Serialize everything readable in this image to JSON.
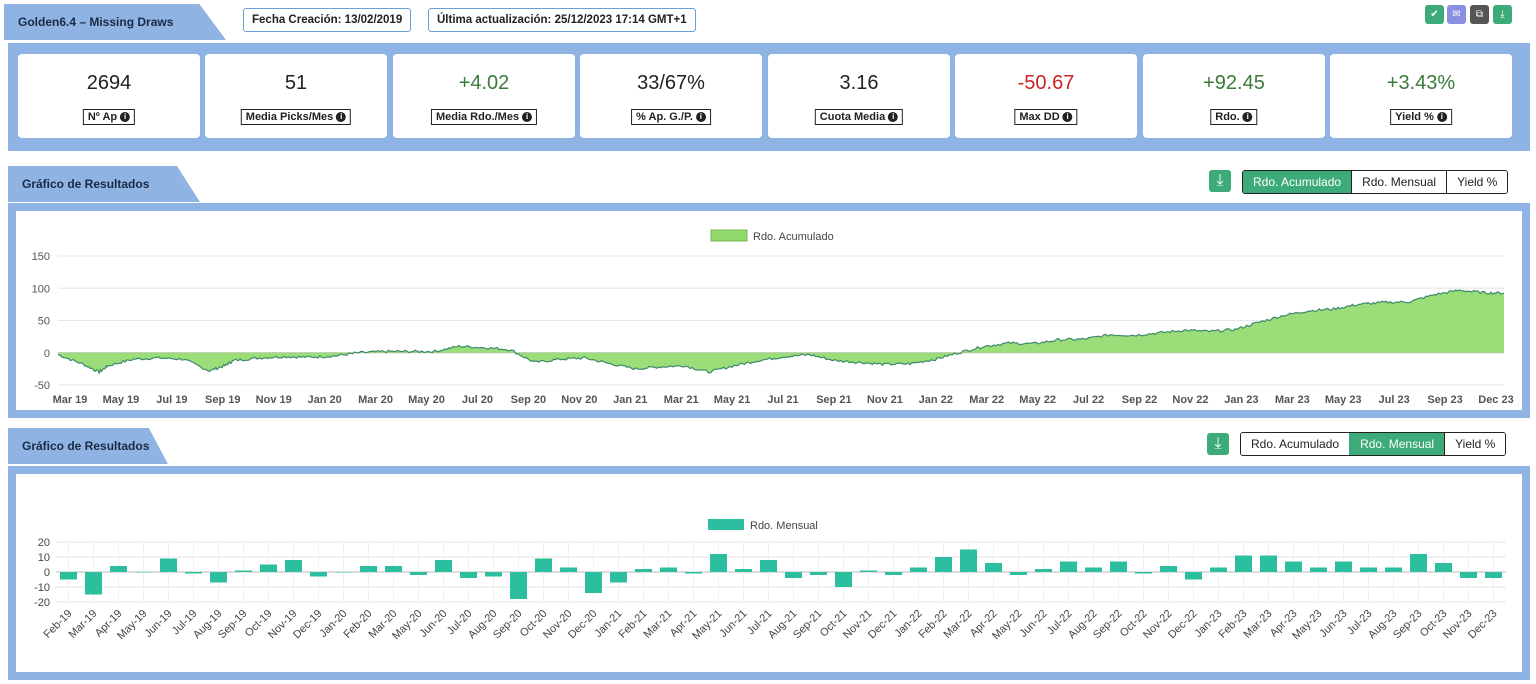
{
  "header": {
    "title": "Golden6.4 – Missing Draws",
    "creation_date": "Fecha Creación: 13/02/2019",
    "last_update": "Última actualización: 25/12/2023 17:14 GMT+1"
  },
  "toolbar_icons": [
    {
      "name": "check-icon",
      "glyph": "✔",
      "color": "#3daa7a"
    },
    {
      "name": "mail-icon",
      "glyph": "✉",
      "color": "#8b8fe0"
    },
    {
      "name": "share-icon",
      "glyph": "⧉",
      "color": "#555555"
    },
    {
      "name": "download-icon",
      "glyph": "⤓",
      "color": "#3daa7a"
    }
  ],
  "kpis": [
    {
      "value": "2694",
      "label": "Nº Ap",
      "color": "#222222"
    },
    {
      "value": "51",
      "label": "Media Picks/Mes",
      "color": "#222222"
    },
    {
      "value": "+4.02",
      "label": "Media Rdo./Mes",
      "color": "#3a7a3a"
    },
    {
      "value": "33/67%",
      "label": "% Ap. G./P.",
      "color": "#222222"
    },
    {
      "value": "3.16",
      "label": "Cuota Media",
      "color": "#222222"
    },
    {
      "value": "-50.67",
      "label": "Max DD",
      "color": "#cc2222"
    },
    {
      "value": "+92.45",
      "label": "Rdo.",
      "color": "#3a7a3a"
    },
    {
      "value": "+3.43%",
      "label": "Yield %",
      "color": "#3a7a3a"
    }
  ],
  "info_glyph": "i",
  "download_glyph": "⤓",
  "section1": {
    "title": "Gráfico de Resultados",
    "tabs": [
      "Rdo. Acumulado",
      "Rdo. Mensual",
      "Yield %"
    ],
    "active": 0
  },
  "section2": {
    "title": "Gráfico de Resultados",
    "tabs": [
      "Rdo. Acumulado",
      "Rdo. Mensual",
      "Yield %"
    ],
    "active": 1
  },
  "chart_data": [
    {
      "type": "area",
      "legend": "Rdo. Acumulado",
      "color": "#90d96a",
      "line_color": "#3d8a6a",
      "ylim": [
        -50,
        150
      ],
      "yticks": [
        -50,
        0,
        50,
        100,
        150
      ],
      "x_start": "2019-03-01",
      "x_end": "2023-12-25",
      "xtick_labels": [
        "Mar 19",
        "May 19",
        "Jul 19",
        "Sep 19",
        "Nov 19",
        "Jan 20",
        "Mar 20",
        "May 20",
        "Jul 20",
        "Sep 20",
        "Nov 20",
        "Jan 21",
        "Mar 21",
        "May 21",
        "Jul 21",
        "Sep 21",
        "Nov 21",
        "Jan 22",
        "Mar 22",
        "May 22",
        "Jul 22",
        "Sep 22",
        "Nov 22",
        "Jan 23",
        "Mar 23",
        "May 23",
        "Jul 23",
        "Sep 23",
        "Dec 23"
      ],
      "points": [
        [
          "2019-03-01",
          -3
        ],
        [
          "2019-04-01",
          -18
        ],
        [
          "2019-04-20",
          -30
        ],
        [
          "2019-05-01",
          -20
        ],
        [
          "2019-06-01",
          -10
        ],
        [
          "2019-07-01",
          -8
        ],
        [
          "2019-08-01",
          -10
        ],
        [
          "2019-09-01",
          -28
        ],
        [
          "2019-09-20",
          -20
        ],
        [
          "2019-10-01",
          -12
        ],
        [
          "2019-11-01",
          -8
        ],
        [
          "2019-12-01",
          -6
        ],
        [
          "2020-01-01",
          -7
        ],
        [
          "2020-02-01",
          -5
        ],
        [
          "2020-03-01",
          0
        ],
        [
          "2020-04-01",
          2
        ],
        [
          "2020-05-01",
          2
        ],
        [
          "2020-06-01",
          2
        ],
        [
          "2020-07-01",
          10
        ],
        [
          "2020-08-01",
          8
        ],
        [
          "2020-09-01",
          5
        ],
        [
          "2020-10-01",
          -15
        ],
        [
          "2020-11-01",
          -10
        ],
        [
          "2020-12-01",
          -8
        ],
        [
          "2021-01-01",
          -17
        ],
        [
          "2021-02-01",
          -25
        ],
        [
          "2021-03-01",
          -22
        ],
        [
          "2021-04-01",
          -20
        ],
        [
          "2021-05-01",
          -30
        ],
        [
          "2021-06-01",
          -20
        ],
        [
          "2021-07-01",
          -12
        ],
        [
          "2021-08-01",
          -6
        ],
        [
          "2021-09-01",
          -3
        ],
        [
          "2021-10-01",
          -12
        ],
        [
          "2021-11-01",
          -15
        ],
        [
          "2021-12-01",
          -18
        ],
        [
          "2022-01-01",
          -17
        ],
        [
          "2022-02-01",
          -10
        ],
        [
          "2022-03-01",
          0
        ],
        [
          "2022-04-01",
          10
        ],
        [
          "2022-05-01",
          15
        ],
        [
          "2022-06-01",
          14
        ],
        [
          "2022-07-01",
          20
        ],
        [
          "2022-08-01",
          21
        ],
        [
          "2022-09-01",
          28
        ],
        [
          "2022-10-01",
          27
        ],
        [
          "2022-11-01",
          31
        ],
        [
          "2022-12-01",
          35
        ],
        [
          "2023-01-01",
          33
        ],
        [
          "2023-02-01",
          36
        ],
        [
          "2023-03-01",
          47
        ],
        [
          "2023-04-01",
          58
        ],
        [
          "2023-05-01",
          65
        ],
        [
          "2023-06-01",
          68
        ],
        [
          "2023-07-01",
          75
        ],
        [
          "2023-08-01",
          78
        ],
        [
          "2023-09-01",
          79
        ],
        [
          "2023-10-01",
          90
        ],
        [
          "2023-11-01",
          97
        ],
        [
          "2023-12-01",
          93
        ],
        [
          "2023-12-25",
          92.45
        ]
      ]
    },
    {
      "type": "bar",
      "legend": "Rdo. Mensual",
      "color": "#2bbf9f",
      "ylim": [
        -20,
        20
      ],
      "yticks": [
        -20,
        -10,
        0,
        10,
        20
      ],
      "categories": [
        "Feb-19",
        "Mar-19",
        "Apr-19",
        "May-19",
        "Jun-19",
        "Jul-19",
        "Aug-19",
        "Sep-19",
        "Oct-19",
        "Nov-19",
        "Dec-19",
        "Jan-20",
        "Feb-20",
        "Mar-20",
        "May-20",
        "Jun-20",
        "Jul-20",
        "Aug-20",
        "Sep-20",
        "Oct-20",
        "Nov-20",
        "Dec-20",
        "Jan-21",
        "Feb-21",
        "Mar-21",
        "Apr-21",
        "May-21",
        "Jun-21",
        "Jul-21",
        "Aug-21",
        "Sep-21",
        "Oct-21",
        "Nov-21",
        "Dec-21",
        "Jan-22",
        "Feb-22",
        "Mar-22",
        "Apr-22",
        "May-22",
        "Jun-22",
        "Jul-22",
        "Aug-22",
        "Sep-22",
        "Oct-22",
        "Nov-22",
        "Dec-22",
        "Jan-23",
        "Feb-23",
        "Mar-23",
        "Apr-23",
        "May-23",
        "Jun-23",
        "Jul-23",
        "Aug-23",
        "Sep-23",
        "Oct-23",
        "Nov-23",
        "Dec-23"
      ],
      "values": [
        -5,
        -15,
        4,
        0,
        9,
        -1,
        -7,
        1,
        5,
        8,
        -3,
        0,
        4,
        4,
        -2,
        8,
        -4,
        -3,
        -18,
        9,
        3,
        -14,
        -7,
        2,
        3,
        -1,
        12,
        2,
        8,
        -4,
        -2,
        -10,
        1,
        -2,
        3,
        10,
        15,
        6,
        -2,
        2,
        7,
        3,
        7,
        -1,
        4,
        -5,
        3,
        11,
        11,
        7,
        3,
        7,
        3,
        3,
        12,
        6,
        -4,
        -4
      ]
    }
  ]
}
